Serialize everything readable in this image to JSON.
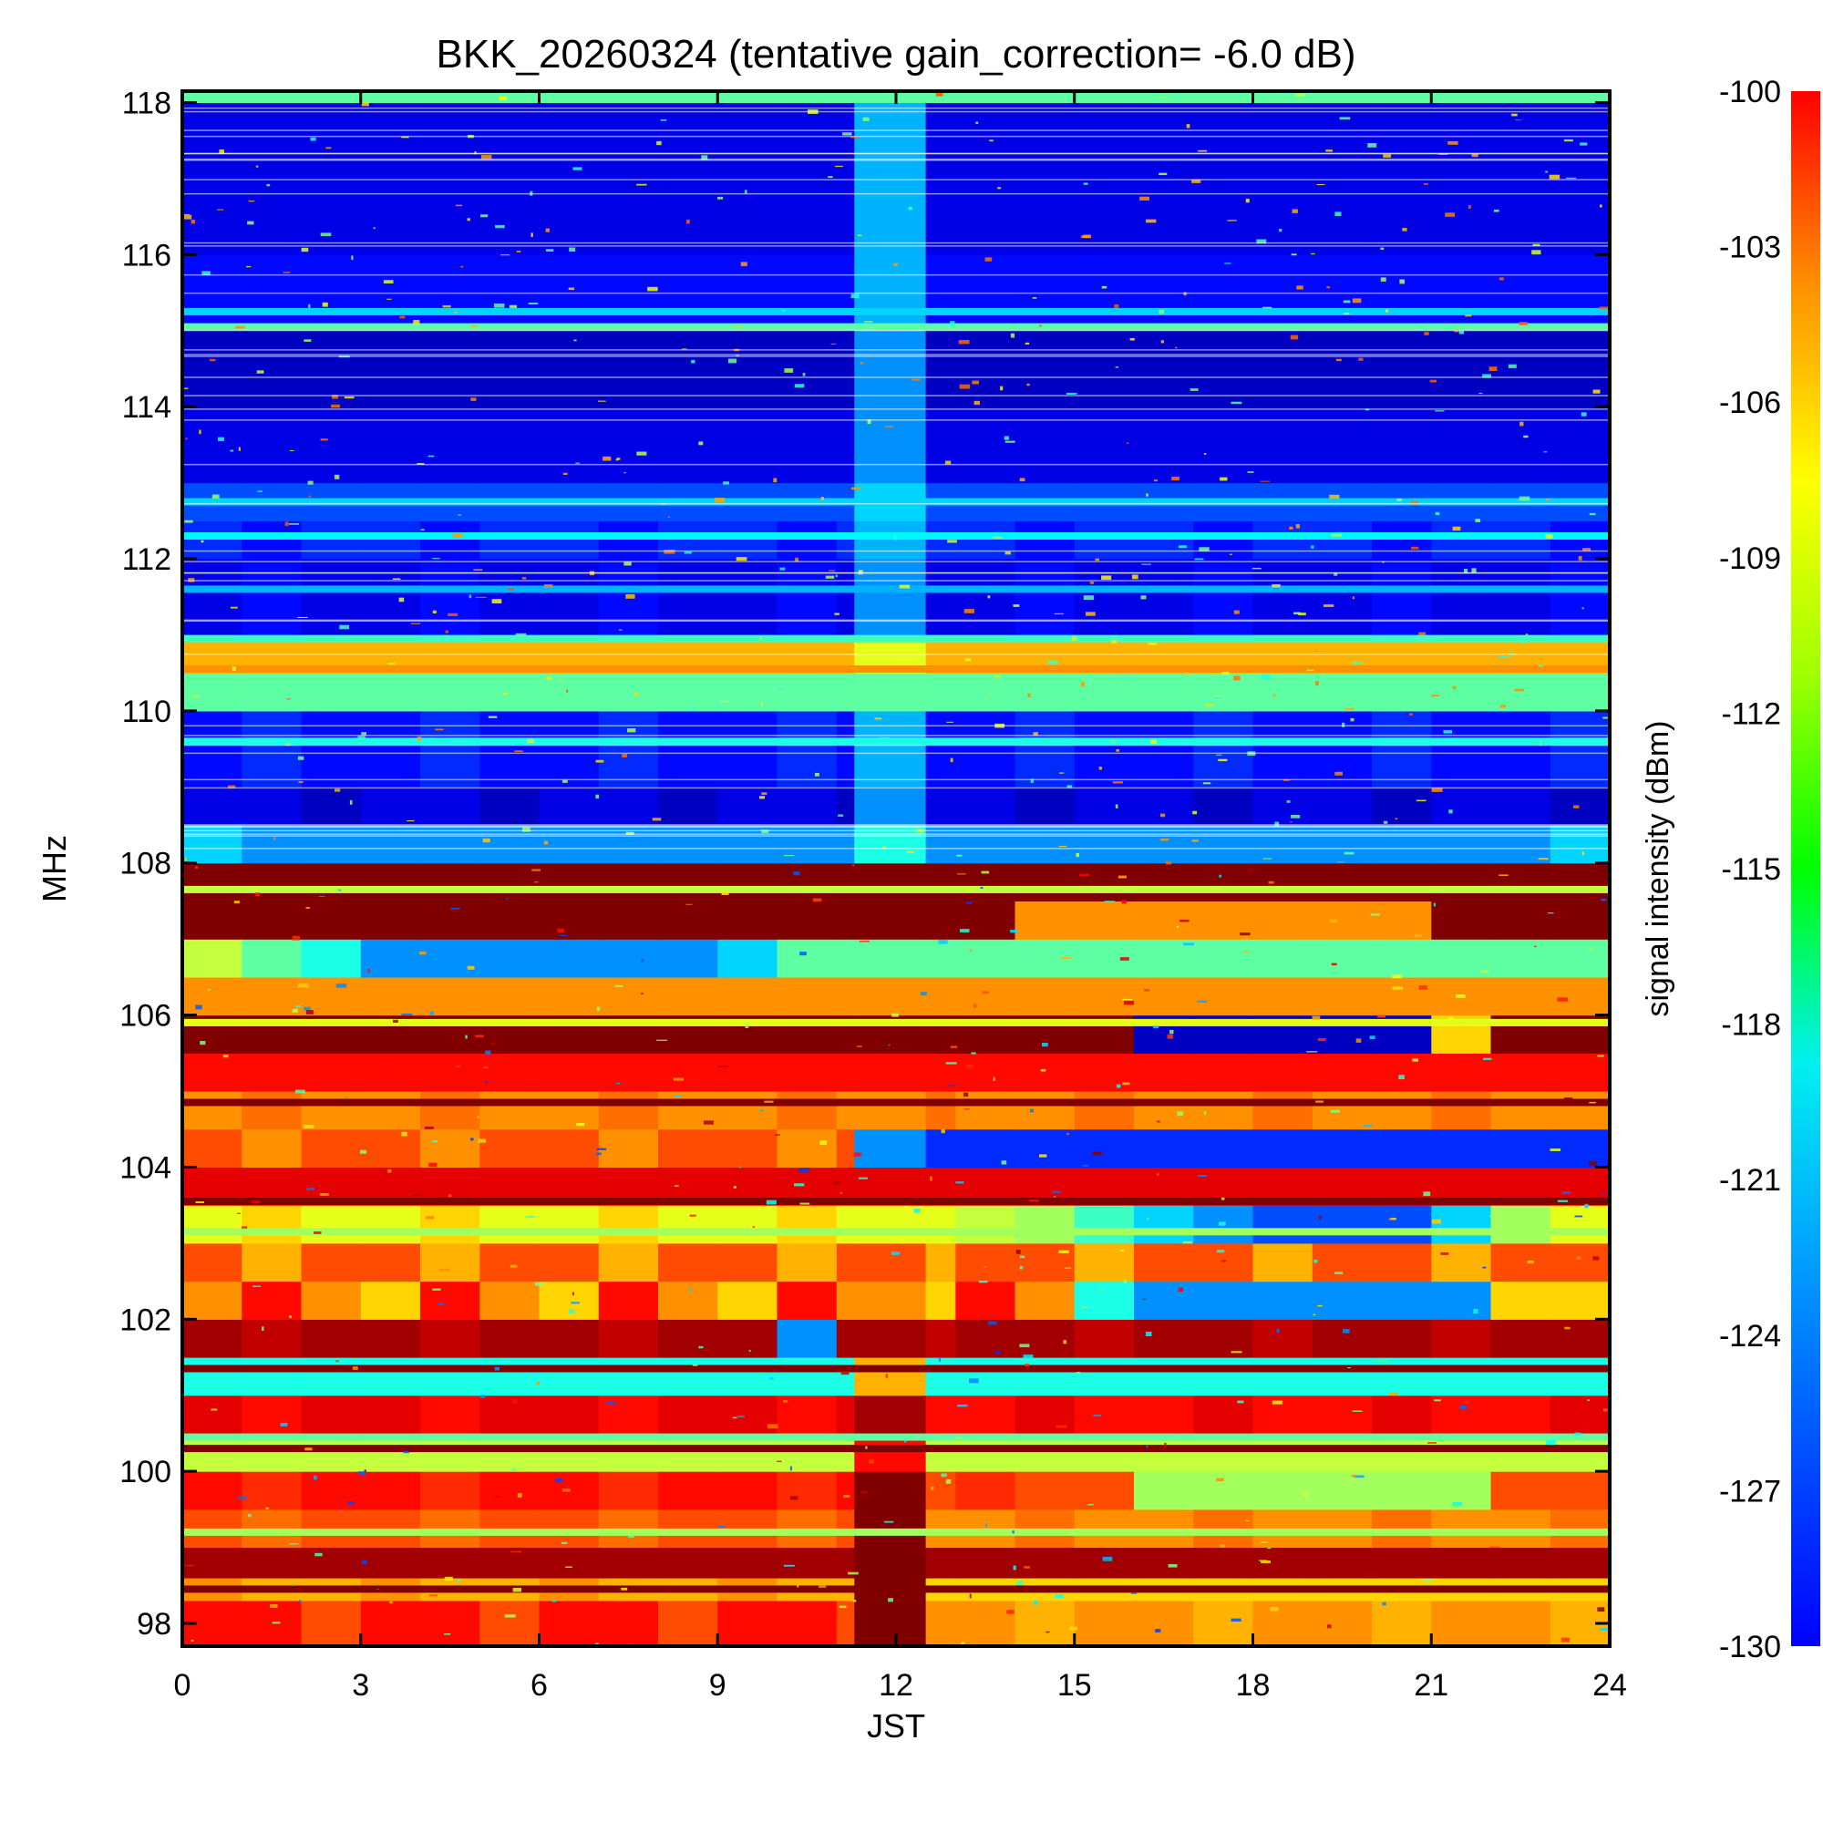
{
  "chart_data": {
    "type": "heatmap",
    "title": "BKK_20260324 (tentative gain_correction= -6.0 dB)",
    "xlabel": "JST",
    "ylabel": "MHz",
    "xlim": [
      0,
      24
    ],
    "ylim": [
      97.7,
      118.15
    ],
    "xticks": [
      "0",
      "3",
      "6",
      "9",
      "12",
      "15",
      "18",
      "21",
      "24"
    ],
    "xtick_values": [
      0,
      3,
      6,
      9,
      12,
      15,
      18,
      21,
      24
    ],
    "yticks": [
      "98",
      "100",
      "102",
      "104",
      "106",
      "108",
      "110",
      "112",
      "114",
      "116",
      "118"
    ],
    "ytick_values": [
      98,
      100,
      102,
      104,
      106,
      108,
      110,
      112,
      114,
      116,
      118
    ],
    "colorbar": {
      "label": "signal intensity (dBm)",
      "range": [
        -130,
        -100
      ],
      "ticks": [
        "-100",
        "-103",
        "-106",
        "-109",
        "-112",
        "-115",
        "-118",
        "-121",
        "-124",
        "-127",
        "-130"
      ],
      "tick_values": [
        -100,
        -103,
        -106,
        -109,
        -112,
        -115,
        -118,
        -121,
        -124,
        -127,
        -130
      ],
      "colormap": "jet"
    },
    "summary": {
      "band_108_118_MHz_typical_dBm": -127,
      "band_98_108_MHz_typical_dBm": -105,
      "noisy_interval_JST": [
        11.3,
        12.5
      ]
    },
    "cells": {
      "x_bins": [
        0,
        1,
        2,
        3,
        4,
        5,
        6,
        7,
        8,
        9,
        10,
        11,
        11.3,
        12.5,
        13,
        14,
        15,
        16,
        17,
        18,
        19,
        20,
        21,
        22,
        23,
        24
      ],
      "y_bins": [
        97.7,
        98.3,
        98.6,
        99,
        99.5,
        100,
        100.5,
        101,
        101.5,
        102,
        102.5,
        103,
        103.5,
        104,
        104.5,
        105,
        105.5,
        106,
        106.5,
        107,
        107.5,
        108,
        108.5,
        109,
        110,
        110.5,
        111,
        112,
        112.5,
        113,
        114,
        115,
        116,
        117,
        118,
        118.15
      ],
      "note": "rows = frequency bins (low to high), columns = time bins (dBm)",
      "values": [
        [
          -104,
          -104,
          -106,
          -104,
          -104,
          -106,
          -104,
          -104,
          -106,
          -104,
          -104,
          -106,
          -100,
          -108,
          -108,
          -109,
          -108,
          -108,
          -109,
          -108,
          -108,
          -109,
          -108,
          -108,
          -109
        ],
        [
          -108,
          -109,
          -109,
          -108,
          -109,
          -109,
          -108,
          -109,
          -109,
          -108,
          -109,
          -109,
          -100,
          -110,
          -110,
          -110,
          -110,
          -110,
          -110,
          -110,
          -110,
          -110,
          -110,
          -110,
          -110
        ],
        [
          -101,
          -101,
          -101,
          -101,
          -101,
          -101,
          -101,
          -101,
          -101,
          -101,
          -101,
          -101,
          -100,
          -101,
          -101,
          -101,
          -101,
          -101,
          -101,
          -101,
          -101,
          -101,
          -101,
          -101,
          -101
        ],
        [
          -106,
          -107,
          -106,
          -106,
          -107,
          -106,
          -106,
          -107,
          -106,
          -106,
          -107,
          -106,
          -100,
          -108,
          -108,
          -107,
          -108,
          -108,
          -107,
          -108,
          -108,
          -107,
          -108,
          -108,
          -107
        ],
        [
          -104,
          -105,
          -104,
          -104,
          -105,
          -104,
          -104,
          -105,
          -104,
          -104,
          -105,
          -104,
          -100,
          -106,
          -105,
          -106,
          -106,
          -114,
          -114,
          -114,
          -114,
          -114,
          -114,
          -106,
          -106
        ],
        [
          -113,
          -113,
          -113,
          -113,
          -113,
          -113,
          -113,
          -113,
          -113,
          -113,
          -113,
          -113,
          -104,
          -113,
          -113,
          -113,
          -113,
          -113,
          -113,
          -113,
          -113,
          -113,
          -113,
          -113,
          -113
        ],
        [
          -103,
          -104,
          -103,
          -103,
          -104,
          -103,
          -103,
          -104,
          -103,
          -103,
          -104,
          -103,
          -101,
          -104,
          -104,
          -103,
          -104,
          -104,
          -103,
          -104,
          -104,
          -103,
          -104,
          -104,
          -103
        ],
        [
          -118,
          -118,
          -118,
          -118,
          -118,
          -118,
          -118,
          -118,
          -118,
          -118,
          -118,
          -118,
          -109,
          -118,
          -118,
          -118,
          -118,
          -118,
          -118,
          -118,
          -118,
          -118,
          -118,
          -118,
          -118
        ],
        [
          -101,
          -102,
          -101,
          -101,
          -102,
          -101,
          -101,
          -102,
          -101,
          -101,
          -122,
          -101,
          -101,
          -102,
          -101,
          -101,
          -102,
          -101,
          -101,
          -102,
          -101,
          -101,
          -102,
          -101,
          -101
        ],
        [
          -108,
          -104,
          -108,
          -110,
          -104,
          -108,
          -110,
          -104,
          -108,
          -110,
          -104,
          -108,
          -108,
          -110,
          -104,
          -108,
          -118,
          -122,
          -122,
          -122,
          -122,
          -122,
          -122,
          -110,
          -110
        ],
        [
          -106,
          -109,
          -106,
          -106,
          -109,
          -106,
          -106,
          -109,
          -106,
          -106,
          -109,
          -106,
          -106,
          -109,
          -106,
          -106,
          -109,
          -106,
          -106,
          -109,
          -106,
          -106,
          -109,
          -106,
          -106
        ],
        [
          -112,
          -110,
          -112,
          -112,
          -110,
          -112,
          -112,
          -110,
          -112,
          -112,
          -110,
          -112,
          -112,
          -112,
          -113,
          -114,
          -117,
          -120,
          -122,
          -124,
          -124,
          -124,
          -120,
          -114,
          -112
        ],
        [
          -103,
          -103,
          -103,
          -103,
          -103,
          -103,
          -103,
          -103,
          -103,
          -103,
          -103,
          -103,
          -103,
          -103,
          -103,
          -103,
          -103,
          -103,
          -103,
          -103,
          -103,
          -103,
          -103,
          -103,
          -103
        ],
        [
          -106,
          -108,
          -106,
          -106,
          -108,
          -106,
          -106,
          -108,
          -106,
          -106,
          -108,
          -106,
          -122,
          -125,
          -125,
          -125,
          -125,
          -125,
          -125,
          -125,
          -125,
          -125,
          -125,
          -125,
          -125
        ],
        [
          -108,
          -107,
          -108,
          -108,
          -107,
          -108,
          -108,
          -107,
          -108,
          -108,
          -107,
          -108,
          -108,
          -107,
          -108,
          -108,
          -107,
          -108,
          -108,
          -107,
          -108,
          -108,
          -107,
          -108,
          -108
        ],
        [
          -104,
          -104,
          -104,
          -104,
          -104,
          -104,
          -104,
          -104,
          -104,
          -104,
          -104,
          -104,
          -104,
          -104,
          -104,
          -104,
          -104,
          -104,
          -104,
          -104,
          -104,
          -104,
          -104,
          -104,
          -104
        ],
        [
          -100,
          -100,
          -100,
          -100,
          -100,
          -100,
          -100,
          -100,
          -100,
          -100,
          -100,
          -100,
          -100,
          -100,
          -100,
          -100,
          -100,
          -128,
          -128,
          -128,
          -128,
          -128,
          -110,
          -100,
          -100
        ],
        [
          -108,
          -108,
          -108,
          -108,
          -108,
          -108,
          -108,
          -108,
          -108,
          -108,
          -108,
          -108,
          -108,
          -108,
          -108,
          -108,
          -108,
          -108,
          -108,
          -108,
          -108,
          -108,
          -108,
          -108,
          -108
        ],
        [
          -113,
          -116,
          -118,
          -122,
          -122,
          -122,
          -122,
          -122,
          -122,
          -120,
          -116,
          -116,
          -116,
          -116,
          -116,
          -116,
          -116,
          -116,
          -116,
          -116,
          -116,
          -116,
          -116,
          -116,
          -116
        ],
        [
          -100,
          -100,
          -100,
          -100,
          -100,
          -100,
          -100,
          -100,
          -100,
          -100,
          -100,
          -100,
          -100,
          -100,
          -100,
          -108,
          -108,
          -108,
          -108,
          -108,
          -108,
          -108,
          -100,
          -100,
          -100
        ],
        [
          -100,
          -100,
          -100,
          -100,
          -100,
          -100,
          -100,
          -100,
          -100,
          -100,
          -100,
          -100,
          -100,
          -100,
          -100,
          -100,
          -100,
          -100,
          -100,
          -100,
          -100,
          -100,
          -100,
          -100,
          -100
        ],
        [
          -120,
          -122,
          -122,
          -122,
          -122,
          -122,
          -122,
          -122,
          -122,
          -122,
          -122,
          -122,
          -118,
          -122,
          -122,
          -122,
          -122,
          -122,
          -122,
          -122,
          -122,
          -122,
          -122,
          -122,
          -120
        ],
        [
          -127,
          -127,
          -128,
          -127,
          -127,
          -128,
          -127,
          -127,
          -128,
          -127,
          -127,
          -128,
          -122,
          -127,
          -127,
          -128,
          -127,
          -127,
          -128,
          -127,
          -127,
          -128,
          -127,
          -127,
          -128
        ],
        [
          -126,
          -125,
          -126,
          -126,
          -125,
          -126,
          -126,
          -125,
          -126,
          -126,
          -125,
          -126,
          -121,
          -126,
          -126,
          -125,
          -126,
          -126,
          -125,
          -126,
          -126,
          -125,
          -126,
          -126,
          -125
        ],
        [
          -116,
          -116,
          -116,
          -116,
          -116,
          -116,
          -116,
          -116,
          -116,
          -116,
          -116,
          -116,
          -116,
          -116,
          -116,
          -116,
          -116,
          -116,
          -116,
          -116,
          -116,
          -116,
          -116,
          -116,
          -116
        ],
        [
          -109,
          -109,
          -109,
          -109,
          -109,
          -109,
          -109,
          -109,
          -109,
          -109,
          -109,
          -109,
          -112,
          -109,
          -109,
          -109,
          -109,
          -109,
          -109,
          -109,
          -109,
          -109,
          -109,
          -109,
          -109
        ],
        [
          -127,
          -126,
          -127,
          -127,
          -126,
          -127,
          -127,
          -126,
          -127,
          -127,
          -126,
          -127,
          -122,
          -127,
          -127,
          -126,
          -127,
          -127,
          -126,
          -127,
          -127,
          -126,
          -127,
          -127,
          -126
        ],
        [
          -125,
          -126,
          -125,
          -125,
          -126,
          -125,
          -125,
          -126,
          -125,
          -125,
          -126,
          -125,
          -121,
          -125,
          -125,
          -126,
          -125,
          -125,
          -126,
          -125,
          -125,
          -126,
          -125,
          -125,
          -126
        ],
        [
          -124,
          -124,
          -124,
          -124,
          -124,
          -124,
          -124,
          -124,
          -124,
          -124,
          -124,
          -124,
          -120,
          -124,
          -124,
          -124,
          -124,
          -124,
          -124,
          -124,
          -124,
          -124,
          -124,
          -124,
          -124
        ],
        [
          -127,
          -127,
          -127,
          -127,
          -127,
          -127,
          -127,
          -127,
          -127,
          -127,
          -127,
          -127,
          -122,
          -127,
          -127,
          -127,
          -127,
          -127,
          -127,
          -127,
          -127,
          -127,
          -127,
          -127,
          -127
        ],
        [
          -128,
          -128,
          -128,
          -128,
          -128,
          -128,
          -128,
          -128,
          -128,
          -128,
          -128,
          -128,
          -122,
          -128,
          -128,
          -128,
          -128,
          -128,
          -128,
          -128,
          -128,
          -128,
          -128,
          -128,
          -128
        ],
        [
          -126,
          -126,
          -126,
          -126,
          -126,
          -126,
          -126,
          -126,
          -126,
          -126,
          -126,
          -126,
          -121,
          -126,
          -126,
          -126,
          -126,
          -126,
          -126,
          -126,
          -126,
          -126,
          -126,
          -126,
          -126
        ],
        [
          -127,
          -127,
          -127,
          -127,
          -127,
          -127,
          -127,
          -127,
          -127,
          -127,
          -127,
          -127,
          -121,
          -127,
          -127,
          -127,
          -127,
          -127,
          -127,
          -127,
          -127,
          -127,
          -127,
          -127,
          -127
        ],
        [
          -127,
          -127,
          -127,
          -127,
          -127,
          -127,
          -127,
          -127,
          -127,
          -127,
          -127,
          -127,
          -121,
          -127,
          -127,
          -127,
          -127,
          -127,
          -127,
          -127,
          -127,
          -127,
          -127,
          -127,
          -127
        ],
        [
          -116,
          -116,
          -116,
          -116,
          -116,
          -116,
          -116,
          -116,
          -116,
          -116,
          -116,
          -116,
          -116,
          -116,
          -116,
          -116,
          -116,
          -116,
          -116,
          -116,
          -116,
          -116,
          -116,
          -116,
          -116
        ]
      ]
    },
    "lines": [
      {
        "freq": 110.55,
        "dbm": -108
      },
      {
        "freq": 110.05,
        "dbm": -116
      },
      {
        "freq": 109.6,
        "dbm": -118
      },
      {
        "freq": 115.25,
        "dbm": -120
      },
      {
        "freq": 115.05,
        "dbm": -116
      },
      {
        "freq": 112.3,
        "dbm": -119
      },
      {
        "freq": 112.75,
        "dbm": -120
      },
      {
        "freq": 111.6,
        "dbm": -121
      },
      {
        "freq": 110.95,
        "dbm": -117
      },
      {
        "freq": 104.85,
        "dbm": -100
      },
      {
        "freq": 103.55,
        "dbm": -100
      },
      {
        "freq": 101.35,
        "dbm": -100
      },
      {
        "freq": 100.3,
        "dbm": -100
      },
      {
        "freq": 98.45,
        "dbm": -100
      },
      {
        "freq": 107.65,
        "dbm": -113
      },
      {
        "freq": 105.9,
        "dbm": -112
      },
      {
        "freq": 103.15,
        "dbm": -114
      },
      {
        "freq": 100.45,
        "dbm": -116
      },
      {
        "freq": 99.2,
        "dbm": -114
      }
    ]
  }
}
